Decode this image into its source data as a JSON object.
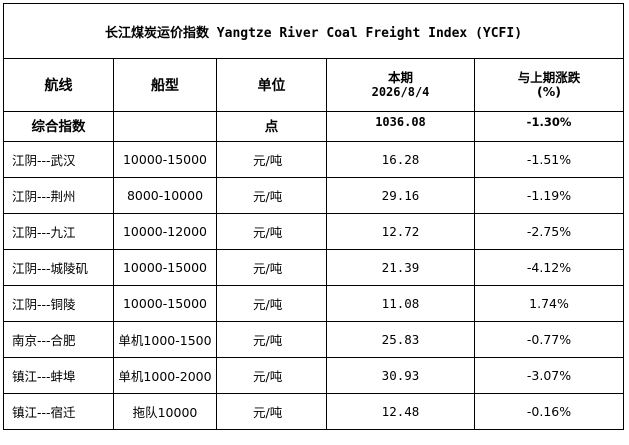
{
  "title": "长江煤炭运价指数 Yangtze River Coal Freight Index (YCFI)",
  "headers": {
    "route": "航线",
    "ship_type": "船型",
    "unit": "单位",
    "current": "本期",
    "current_date": "2026/8/4",
    "change": "与上期涨跌",
    "change_unit": "(%)"
  },
  "composite": {
    "label": "综合指数",
    "ship_type": "",
    "unit": "点",
    "value": "1036.08",
    "change": "-1.30%"
  },
  "rows": [
    {
      "route": "江阴---武汉",
      "ship_type": "10000-15000",
      "unit": "元/吨",
      "value": "16.28",
      "change": "-1.51%"
    },
    {
      "route": "江阴---荆州",
      "ship_type": "8000-10000",
      "unit": "元/吨",
      "value": "29.16",
      "change": "-1.19%"
    },
    {
      "route": "江阴---九江",
      "ship_type": "10000-12000",
      "unit": "元/吨",
      "value": "12.72",
      "change": "-2.75%"
    },
    {
      "route": "江阴---城陵矶",
      "ship_type": "10000-15000",
      "unit": "元/吨",
      "value": "21.39",
      "change": "-4.12%"
    },
    {
      "route": "江阴---铜陵",
      "ship_type": "10000-15000",
      "unit": "元/吨",
      "value": "11.08",
      "change": "1.74%"
    },
    {
      "route": "南京---合肥",
      "ship_type": "单机1000-1500",
      "unit": "元/吨",
      "value": "25.83",
      "change": "-0.77%"
    },
    {
      "route": "镇江---蚌埠",
      "ship_type": "单机1000-2000",
      "unit": "元/吨",
      "value": "30.93",
      "change": "-3.07%"
    },
    {
      "route": "镇江---宿迁",
      "ship_type": "拖队10000",
      "unit": "元/吨",
      "value": "12.48",
      "change": "-0.16%"
    }
  ]
}
